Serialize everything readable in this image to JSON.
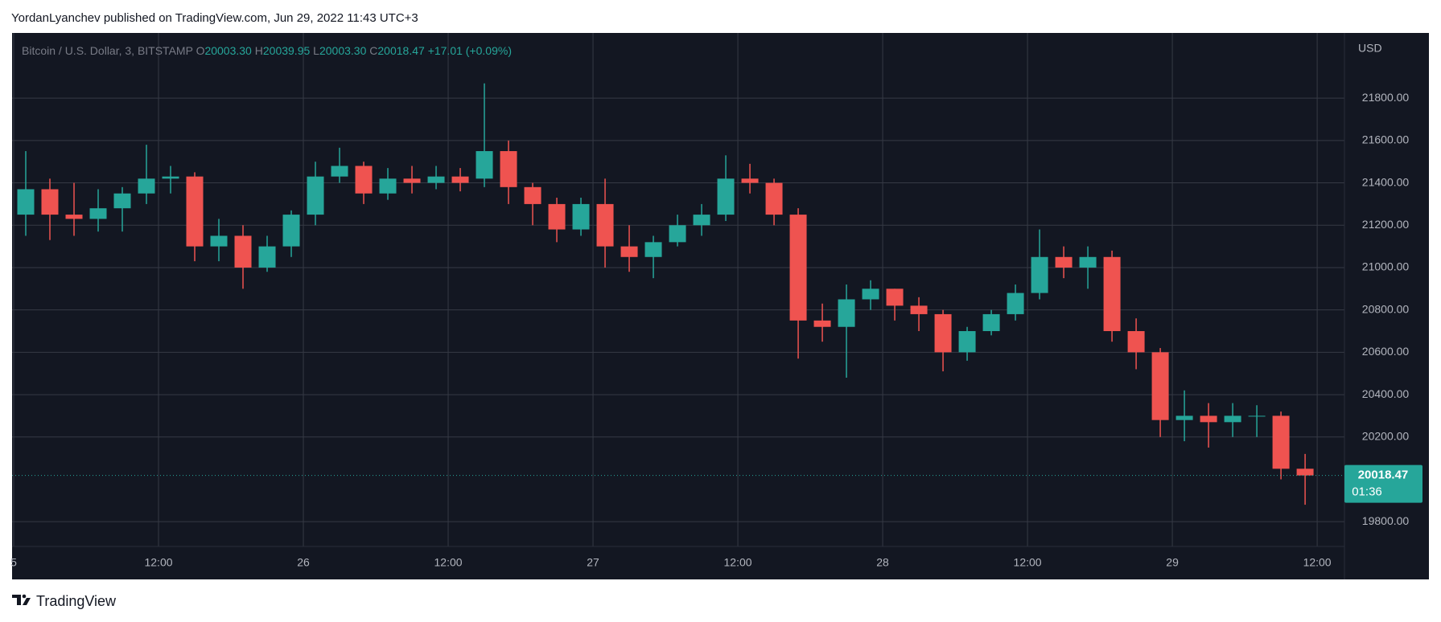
{
  "header": {
    "text": "YordanLyanchev published on TradingView.com, Jun 29, 2022 11:43 UTC+3"
  },
  "chart_data": {
    "type": "candlestick",
    "legend": {
      "symbol": "Bitcoin / U.S. Dollar, 3, BITSTAMP",
      "open_label": "O",
      "open": "20003.30",
      "high_label": "H",
      "high": "20039.95",
      "low_label": "L",
      "low": "20003.30",
      "close_label": "C",
      "close": "20018.47",
      "change": "+17.01 (+0.09%)"
    },
    "currency": "USD",
    "up_color": "#26a69a",
    "down_color": "#ef5350",
    "grid": true,
    "categories": [
      null,
      null,
      null,
      null,
      null,
      null,
      null,
      null,
      null,
      null,
      null,
      null,
      null,
      null,
      null,
      null,
      null,
      null,
      null,
      null,
      null,
      null,
      null,
      null,
      null,
      null,
      null,
      null,
      null,
      null,
      null,
      null,
      null,
      null,
      null,
      null,
      null,
      null,
      null,
      null,
      null,
      null,
      null,
      null,
      null,
      null,
      null,
      null,
      null,
      null,
      null,
      null,
      null,
      null
    ],
    "open": [
      21250,
      21370,
      21250,
      21230,
      21280,
      21350,
      21420,
      21430,
      21100,
      21150,
      21000,
      21100,
      21250,
      21430,
      21480,
      21350,
      21420,
      21400,
      21430,
      21420,
      21550,
      21380,
      21300,
      21180,
      21300,
      21100,
      21050,
      21120,
      21200,
      21250,
      21420,
      21400,
      21250,
      20750,
      20720,
      20850,
      20900,
      20820,
      20780,
      20600,
      20700,
      20780,
      20880,
      21050,
      21000,
      21050,
      20700,
      20600,
      20280,
      20300,
      20270,
      20300,
      20300,
      20050
    ],
    "high": [
      21550,
      21420,
      21400,
      21370,
      21380,
      21580,
      21480,
      21450,
      21230,
      21200,
      21150,
      21270,
      21500,
      21566,
      21500,
      21470,
      21480,
      21480,
      21470,
      21870,
      21600,
      21400,
      21330,
      21330,
      21420,
      21200,
      21150,
      21250,
      21300,
      21530,
      21490,
      21420,
      21280,
      20830,
      20920,
      20940,
      20900,
      20860,
      20800,
      20720,
      20800,
      20920,
      21180,
      21100,
      21100,
      21080,
      20760,
      20620,
      20420,
      20360,
      20360,
      20350,
      20320,
      20120
    ],
    "low": [
      21150,
      21130,
      21150,
      21170,
      21170,
      21300,
      21350,
      21030,
      21030,
      20900,
      20980,
      21050,
      21200,
      21400,
      21300,
      21320,
      21350,
      21370,
      21360,
      21380,
      21300,
      21200,
      21120,
      21150,
      21000,
      20980,
      20950,
      21100,
      21150,
      21220,
      21350,
      21200,
      20570,
      20650,
      20480,
      20800,
      20750,
      20700,
      20510,
      20560,
      20680,
      20750,
      20850,
      20950,
      20900,
      20650,
      20520,
      20200,
      20180,
      20150,
      20200,
      20200,
      20000,
      19880
    ],
    "close": [
      21370,
      21250,
      21230,
      21280,
      21350,
      21420,
      21430,
      21100,
      21150,
      21000,
      21100,
      21250,
      21430,
      21480,
      21350,
      21420,
      21400,
      21430,
      21400,
      21550,
      21380,
      21300,
      21180,
      21300,
      21100,
      21050,
      21120,
      21200,
      21250,
      21420,
      21400,
      21250,
      20750,
      20720,
      20850,
      20900,
      20820,
      20780,
      20600,
      20700,
      20780,
      20880,
      21050,
      21000,
      21050,
      20700,
      20600,
      20280,
      20300,
      20270,
      20300,
      20300,
      20050,
      20018.47
    ],
    "xticks": [
      {
        "value": 0,
        "label": "5"
      },
      {
        "value": 6,
        "label": "12:00"
      },
      {
        "value": 12,
        "label": "26"
      },
      {
        "value": 18,
        "label": "12:00"
      },
      {
        "value": 24,
        "label": "27"
      },
      {
        "value": 30,
        "label": "12:00"
      },
      {
        "value": 36,
        "label": "28"
      },
      {
        "value": 42,
        "label": "12:00"
      },
      {
        "value": 48,
        "label": "29"
      },
      {
        "value": 54,
        "label": "12:00"
      }
    ],
    "ylim": [
      19683,
      22108
    ],
    "yticks": [
      {
        "value": 19800,
        "label": "19800.00"
      },
      {
        "value": 20200,
        "label": "20200.00"
      },
      {
        "value": 20400,
        "label": "20400.00"
      },
      {
        "value": 20600,
        "label": "20600.00"
      },
      {
        "value": 20800,
        "label": "20800.00"
      },
      {
        "value": 21000,
        "label": "21000.00"
      },
      {
        "value": 21200,
        "label": "21200.00"
      },
      {
        "value": 21400,
        "label": "21400.00"
      },
      {
        "value": 21600,
        "label": "21600.00"
      },
      {
        "value": 21800,
        "label": "21800.00"
      }
    ],
    "last_price": {
      "value": 20018.47,
      "label": "20018.47",
      "countdown": "01:36"
    }
  },
  "footer": {
    "brand": "TradingView"
  }
}
